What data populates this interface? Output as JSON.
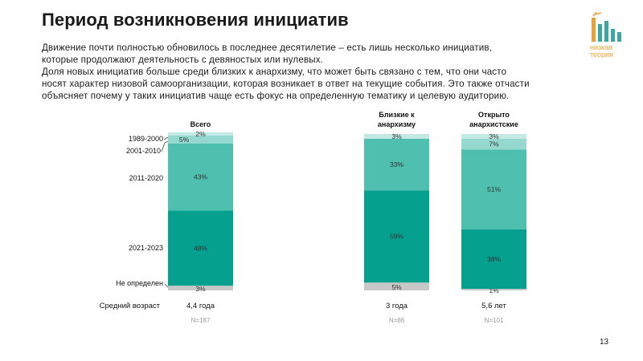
{
  "title": "Период возникновения инициатив",
  "description": [
    "Движение почти полностью обновилось в последнее десятилетие – есть лишь несколько инициатив,",
    "которые продолжают деятельность с девяностых или нулевых.",
    "Доля новых инициатив больше среди близких к анархизму, что может быть связано с тем, что они часто",
    "носят характер низовой самоорганизации, которая возникает в ответ на текущие события. Это также отчасти",
    "объясняет почему у таких инициатив чаще есть фокус на определенную тематику и целевую аудиторию."
  ],
  "logo": {
    "line1": "низкая",
    "line2": "теория",
    "color": "#e8a23a"
  },
  "page_number": "13",
  "chart_data": {
    "type": "bar",
    "stacked": true,
    "ylim": [
      0,
      100
    ],
    "categories": [
      "Всего",
      "Близкие к анархизму",
      "Открыто анархистские"
    ],
    "category_lines": [
      [
        "Всего"
      ],
      [
        "Близкие к",
        "анархизму"
      ],
      [
        "Открыто",
        "анархистские"
      ]
    ],
    "series": [
      {
        "name": "Не определен",
        "color": "#c8c8c8",
        "values": [
          3,
          5,
          1
        ]
      },
      {
        "name": "2021-2023",
        "color": "#06a08e",
        "values": [
          48,
          59,
          38
        ]
      },
      {
        "name": "2011-2020",
        "color": "#4fbfb0",
        "values": [
          43,
          33,
          51
        ]
      },
      {
        "name": "2001-2010",
        "color": "#94d8cf",
        "values": [
          5,
          0,
          7
        ]
      },
      {
        "name": "1989-2000",
        "color": "#c4e9e4",
        "values": [
          2,
          3,
          3
        ]
      }
    ],
    "legend_labels": [
      "1989-2000",
      "2001-2010",
      "2011-2020",
      "2021-2023",
      "Не определен"
    ],
    "footer_label": "Средний возраст",
    "mean_age": [
      "4,4 года",
      "3 года",
      "5,6 лет"
    ],
    "n": [
      "N=187",
      "N=86",
      "N=101"
    ]
  }
}
